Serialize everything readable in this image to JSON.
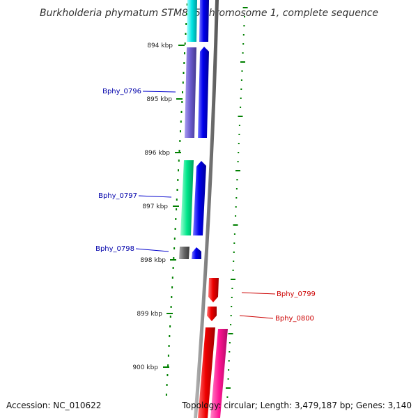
{
  "title": "Burkholderia phymatum STM815 chromosome 1, complete sequence",
  "accession": "Accession: NC_010622",
  "topology": "Topology: circular; Length: 3,479,187 bp; Genes: 3,140",
  "ticks": [
    "894 kbp",
    "895 kbp",
    "896 kbp",
    "897 kbp",
    "898 kbp",
    "899 kbp",
    "900 kbp"
  ],
  "genes": [
    {
      "name": "Bphy_0796",
      "strand": "forward",
      "color": "#6a5acd"
    },
    {
      "name": "Bphy_0797",
      "strand": "forward",
      "color": "#00e68a"
    },
    {
      "name": "Bphy_0798",
      "strand": "forward",
      "color": "#666666"
    },
    {
      "name": "Bphy_0799",
      "strand": "reverse",
      "color": "#ee0000"
    },
    {
      "name": "Bphy_0800",
      "strand": "reverse",
      "color": "#ee0000"
    }
  ],
  "colors": {
    "backbone": "#808080",
    "cds_forward": "#0000ee",
    "cds_reverse": "#ee0000",
    "tick": "#008000",
    "gc_dots": "#008000",
    "label_forward": "#0000aa",
    "label_reverse": "#cc0000",
    "cyan_gene": "#00e5e5",
    "pink_gene": "#ff1493"
  }
}
